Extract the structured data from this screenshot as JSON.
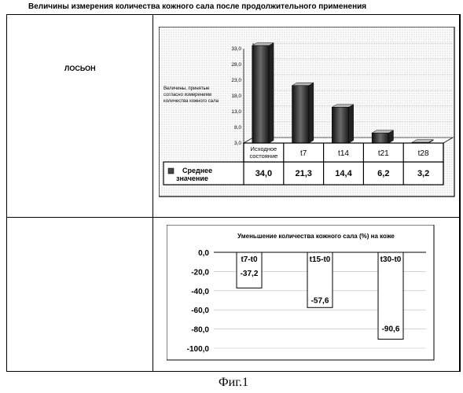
{
  "page_title": "Величины измерения количества кожного сала после продолжительного применения",
  "row_label": "ЛОСЬОН",
  "figure_caption": "Фиг.1",
  "chart_data": [
    {
      "type": "bar",
      "ylabel": "Величины, принятые согласно измерениям количества кожного сала",
      "ylim": [
        3.0,
        33.0
      ],
      "y_ticks": [
        "3,0",
        "8,0",
        "13,0",
        "18,0",
        "23,0",
        "28,0",
        "33,0"
      ],
      "categories": [
        "Исходное состояние",
        "t7",
        "t14",
        "t21",
        "t28"
      ],
      "series": [
        {
          "name": "Среднее значение",
          "values": [
            34.0,
            21.3,
            14.4,
            6.2,
            3.2
          ]
        }
      ],
      "table_values": [
        "34,0",
        "21,3",
        "14,4",
        "6,2",
        "3,2"
      ],
      "legend_placement": "bottom-left table",
      "grid": true
    },
    {
      "type": "bar",
      "title": "Уменьшение количества кожного сала (%) на коже",
      "ylim": [
        -100.0,
        0.0
      ],
      "y_ticks": [
        "0,0",
        "-20,0",
        "-40,0",
        "-60,0",
        "-80,0",
        "-100,0"
      ],
      "categories": [
        "t7-t0",
        "t15-t0",
        "t30-t0"
      ],
      "values": [
        -37.2,
        -57.6,
        -90.6
      ],
      "value_labels": [
        "-37,2",
        "-57,6",
        "-90,6"
      ],
      "grid": true
    }
  ]
}
